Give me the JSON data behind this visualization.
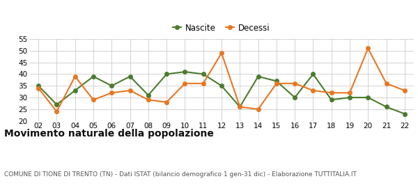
{
  "years": [
    2,
    3,
    4,
    5,
    6,
    7,
    8,
    9,
    10,
    11,
    12,
    13,
    14,
    15,
    16,
    17,
    18,
    19,
    20,
    21,
    22
  ],
  "nascite": [
    35,
    27,
    33,
    39,
    35,
    39,
    31,
    40,
    41,
    40,
    35,
    26,
    39,
    37,
    30,
    40,
    29,
    30,
    30,
    26,
    23
  ],
  "decessi": [
    34,
    24,
    39,
    29,
    32,
    33,
    29,
    28,
    36,
    36,
    49,
    26,
    25,
    36,
    36,
    33,
    32,
    32,
    51,
    36,
    33
  ],
  "nascite_color": "#4a7c2f",
  "decessi_color": "#e87722",
  "background_color": "#ffffff",
  "grid_color": "#cccccc",
  "title": "Movimento naturale della popolazione",
  "subtitle": "COMUNE DI TIONE DI TRENTO (TN) - Dati ISTAT (bilancio demografico 1 gen-31 dic) - Elaborazione TUTTITALIA.IT",
  "ylim": [
    20,
    55
  ],
  "yticks": [
    20,
    25,
    30,
    35,
    40,
    45,
    50,
    55
  ],
  "legend_nascite": "Nascite",
  "legend_decessi": "Decessi",
  "marker_size": 4,
  "line_width": 1.5,
  "title_fontsize": 10,
  "subtitle_fontsize": 6.5,
  "tick_fontsize": 7.5,
  "legend_fontsize": 8.5
}
